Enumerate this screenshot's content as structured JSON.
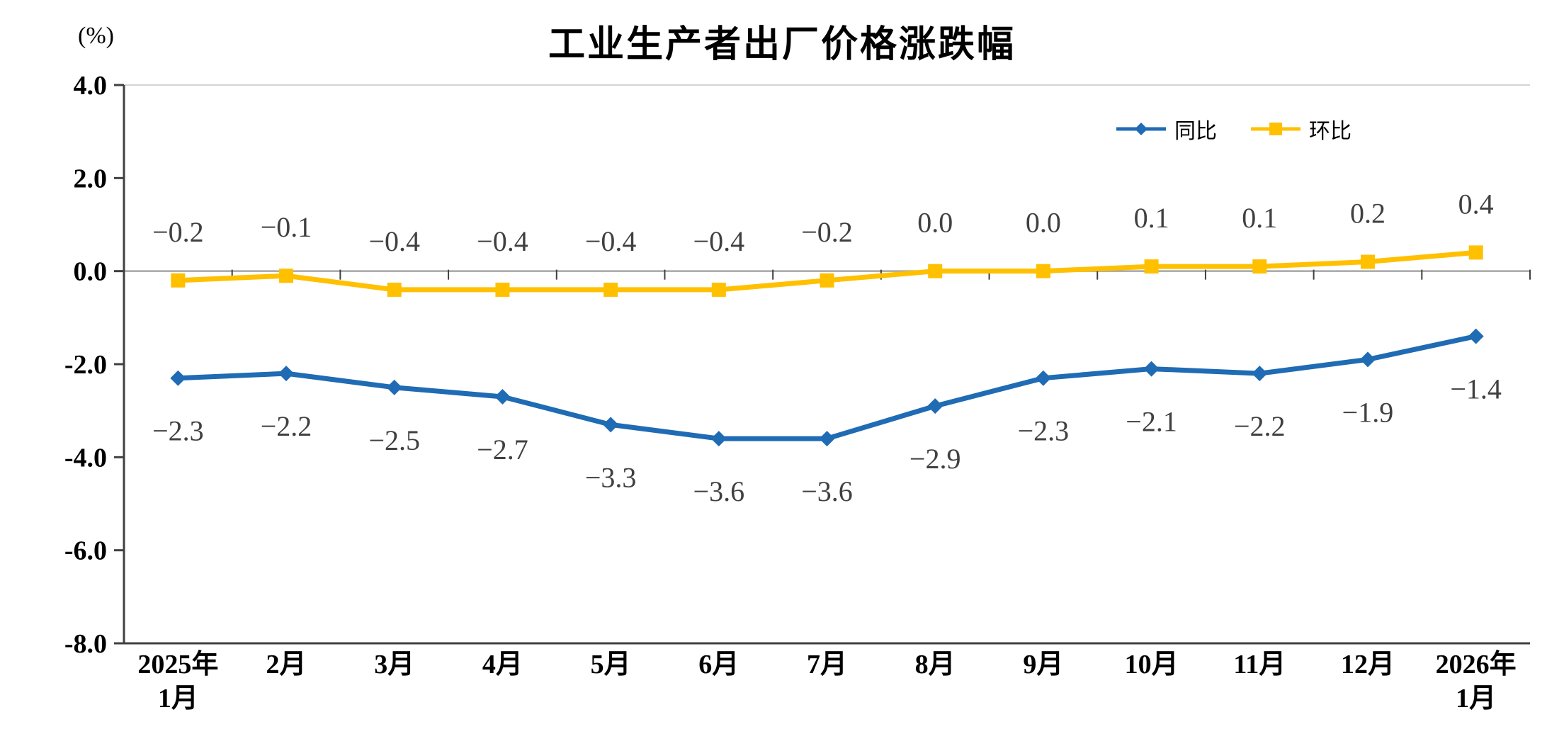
{
  "page": {
    "background": "#ffffff"
  },
  "chart_data": {
    "type": "line",
    "title": "工业生产者出厂价格涨跌幅",
    "y_axis_unit": "(%)",
    "ylim": [
      -8.0,
      4.0
    ],
    "yticks": [
      4.0,
      2.0,
      0.0,
      -2.0,
      -4.0,
      -6.0,
      -8.0
    ],
    "grid": false,
    "legend_position": "top-right",
    "categories": [
      "2025年\n1月",
      "2月",
      "3月",
      "4月",
      "5月",
      "6月",
      "7月",
      "8月",
      "9月",
      "10月",
      "11月",
      "12月",
      "2026年\n1月"
    ],
    "series": [
      {
        "name": "同比",
        "color": "#1f6bb4",
        "marker": "diamond",
        "label_position": "below",
        "values": [
          -2.3,
          -2.2,
          -2.5,
          -2.7,
          -3.3,
          -3.6,
          -3.6,
          -2.9,
          -2.3,
          -2.1,
          -2.2,
          -1.9,
          -1.4
        ]
      },
      {
        "name": "环比",
        "color": "#ffc000",
        "marker": "square",
        "label_position": "above",
        "values": [
          -0.2,
          -0.1,
          -0.4,
          -0.4,
          -0.4,
          -0.4,
          -0.2,
          0.0,
          0.0,
          0.1,
          0.1,
          0.2,
          0.4
        ]
      }
    ],
    "colors": {
      "axis": "#404040",
      "zero_line": "#a6a6a6",
      "label_text": "#404040"
    }
  }
}
